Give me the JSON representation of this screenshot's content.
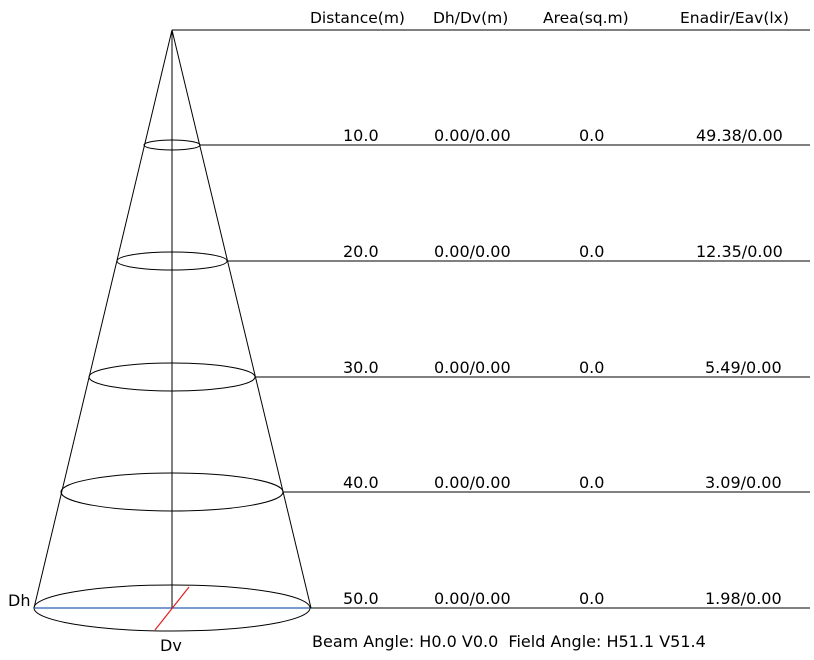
{
  "headers": {
    "distance": "Distance(m)",
    "dhdv": "Dh/Dv(m)",
    "area": "Area(sq.m)",
    "illum": "Enadir/Eav(lx)"
  },
  "rows": [
    {
      "distance": "10.0",
      "dhdv": "0.00/0.00",
      "area": "0.0",
      "illum": "49.38/0.00"
    },
    {
      "distance": "20.0",
      "dhdv": "0.00/0.00",
      "area": "0.0",
      "illum": "12.35/0.00"
    },
    {
      "distance": "30.0",
      "dhdv": "0.00/0.00",
      "area": "0.0",
      "illum": "5.49/0.00"
    },
    {
      "distance": "40.0",
      "dhdv": "0.00/0.00",
      "area": "0.0",
      "illum": "3.09/0.00"
    },
    {
      "distance": "50.0",
      "dhdv": "0.00/0.00",
      "area": "0.0",
      "illum": "1.98/0.00"
    }
  ],
  "labels": {
    "dh": "Dh",
    "dv": "Dv"
  },
  "footer": "Beam Angle: H0.0 V0.0  Field Angle: H51.1 V51.4",
  "colors": {
    "lines": "#000000",
    "dh_axis": "#2a5fb0",
    "dv_axis": "#e02020"
  }
}
